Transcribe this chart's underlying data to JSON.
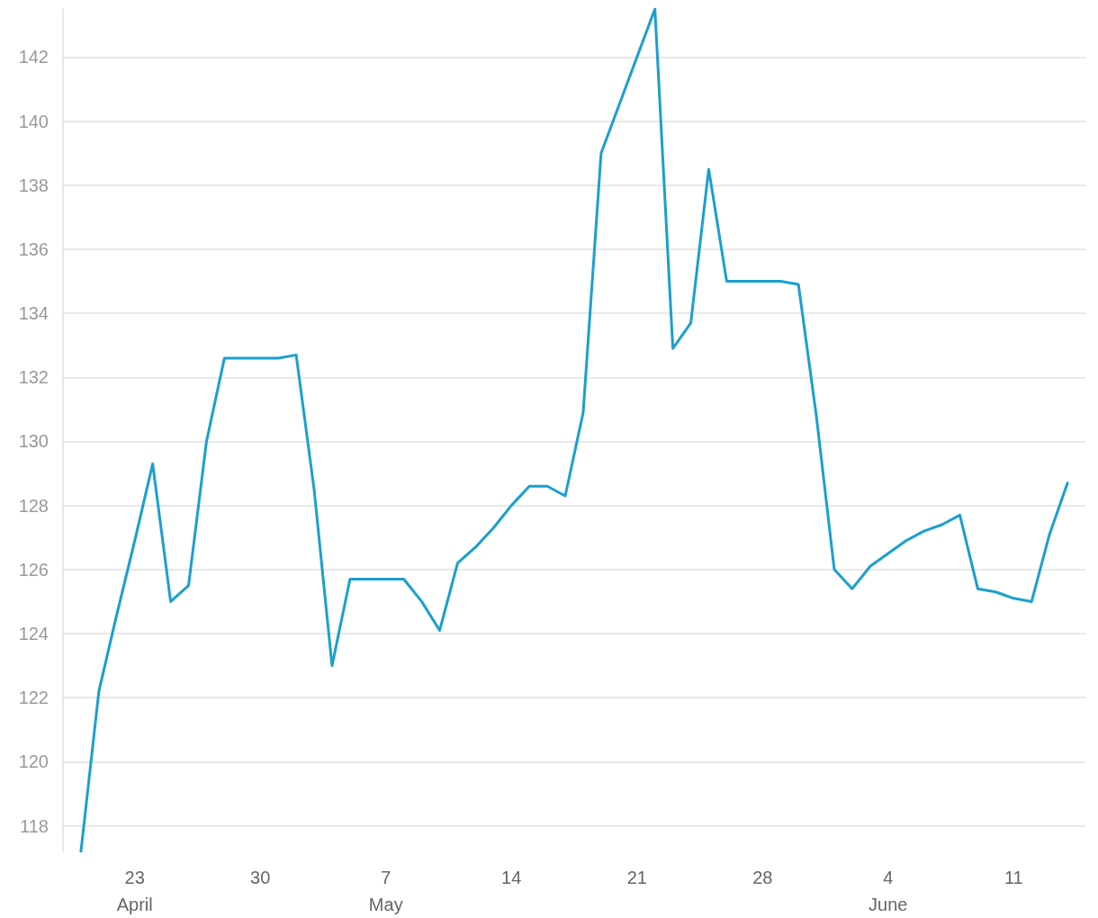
{
  "chart_data": {
    "type": "line",
    "x": [
      "--04-20",
      "--04-21",
      "--04-22",
      "--04-23",
      "--04-24",
      "--04-25",
      "--04-26",
      "--04-27",
      "--04-28",
      "--04-29",
      "--04-30",
      "--05-01",
      "--05-02",
      "--05-03",
      "--05-04",
      "--05-05",
      "--05-06",
      "--05-07",
      "--05-08",
      "--05-09",
      "--05-10",
      "--05-11",
      "--05-12",
      "--05-13",
      "--05-14",
      "--05-15",
      "--05-16",
      "--05-17",
      "--05-18",
      "--05-19",
      "--05-20",
      "--05-21",
      "--05-22",
      "--05-23",
      "--05-24",
      "--05-25",
      "--05-26",
      "--05-27",
      "--05-28",
      "--05-29",
      "--05-30",
      "--05-31",
      "--06-01",
      "--06-02",
      "--06-03",
      "--06-04",
      "--06-05",
      "--06-06",
      "--06-07",
      "--06-08",
      "--06-09",
      "--06-10",
      "--06-11",
      "--06-12",
      "--06-13",
      "--06-14"
    ],
    "series": [
      {
        "color": "#1a9fd0",
        "values": [
          117.2,
          122.2,
          124.6,
          126.9,
          129.3,
          125.0,
          125.5,
          130.0,
          132.6,
          132.6,
          132.6,
          132.6,
          132.7,
          128.5,
          123.0,
          125.7,
          125.7,
          125.7,
          125.7,
          125.0,
          124.1,
          126.2,
          126.7,
          127.3,
          128.0,
          128.6,
          128.6,
          128.3,
          130.9,
          139.0,
          140.5,
          142.0,
          143.5,
          132.9,
          133.7,
          138.5,
          135.0,
          135.0,
          135.0,
          135.0,
          134.9,
          130.8,
          126.0,
          125.4,
          126.1,
          126.5,
          126.9,
          127.2,
          127.4,
          127.7,
          125.4,
          125.3,
          125.1,
          125.0,
          127.1,
          128.7
        ]
      }
    ],
    "xlim": [
      "--04-19",
      "--06-15"
    ],
    "xticks": [
      {
        "value": "--04-23",
        "label": "23\nApril"
      },
      {
        "value": "--04-30",
        "label": "30"
      },
      {
        "value": "--05-07",
        "label": "7\nMay"
      },
      {
        "value": "--05-14",
        "label": "14"
      },
      {
        "value": "--05-21",
        "label": "21"
      },
      {
        "value": "--05-28",
        "label": "28"
      },
      {
        "value": "--06-04",
        "label": "4\nJune"
      },
      {
        "value": "--06-11",
        "label": "11"
      }
    ],
    "yticks": [
      118,
      120,
      122,
      124,
      126,
      128,
      130,
      132,
      134,
      136,
      138,
      140,
      142
    ],
    "ylim": [
      117.2,
      143.5
    ],
    "grid": "y",
    "marker": "none",
    "line_style": "solid"
  }
}
